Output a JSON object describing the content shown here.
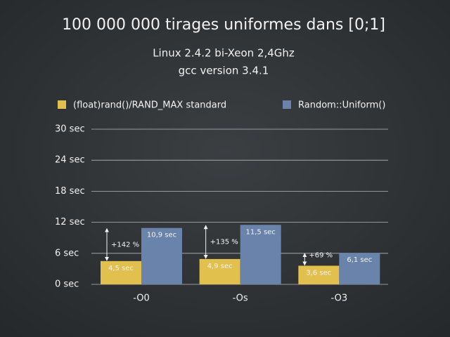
{
  "chart_data": {
    "type": "bar",
    "title": "100 000 000 tirages uniformes dans [0;1]",
    "subtitle": [
      "Linux 2.4.2 bi-Xeon 2,4Ghz",
      "gcc version 3.4.1"
    ],
    "categories": [
      "-O0",
      "-Os",
      "-O3"
    ],
    "series": [
      {
        "name": "(float)rand()/RAND_MAX standard",
        "color": "#e2c04d",
        "values": [
          4.5,
          4.9,
          3.6
        ],
        "value_labels": [
          "4,5 sec",
          "4,9 sec",
          "3,6 sec"
        ]
      },
      {
        "name": "Random::Uniform()",
        "color": "#6a83aa",
        "values": [
          10.9,
          11.5,
          6.1
        ],
        "value_labels": [
          "10,9 sec",
          "11,5 sec",
          "6,1 sec"
        ]
      }
    ],
    "annotations": [
      "+142 %",
      "+135 %",
      "+69 %"
    ],
    "ylim": [
      0,
      30
    ],
    "yticks": [
      {
        "value": 0,
        "label": "0 sec"
      },
      {
        "value": 6,
        "label": "6 sec"
      },
      {
        "value": 12,
        "label": "12 sec"
      },
      {
        "value": 18,
        "label": "18 sec"
      },
      {
        "value": 24,
        "label": "24 sec"
      },
      {
        "value": 30,
        "label": "30 sec"
      }
    ],
    "grid": true,
    "legend": "top"
  }
}
